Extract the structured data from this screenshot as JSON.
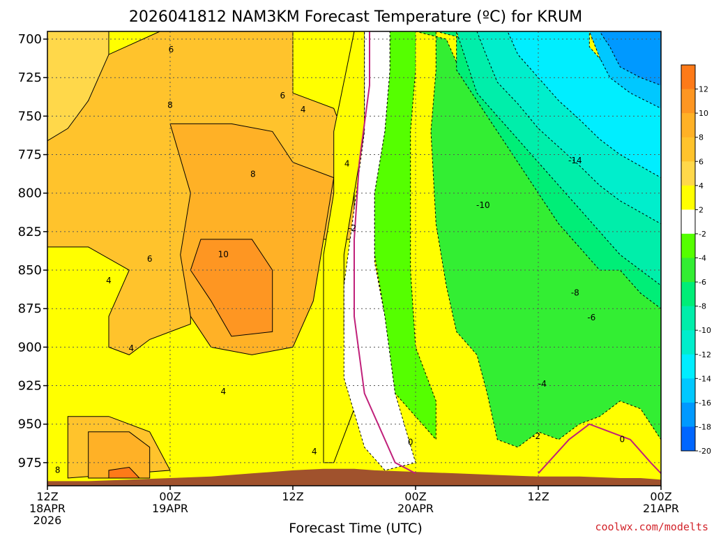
{
  "chart_data": {
    "type": "heatmap",
    "title": "2026041812 NAM3KM Forecast Temperature (ºC) for KRUM",
    "xlabel": "Forecast Time (UTC)",
    "ylabel": "",
    "credit": "coolwx.com/modelts",
    "x_hours_range": [
      0,
      60
    ],
    "y_pressure_range": [
      695,
      990
    ],
    "y_ticks": [
      700,
      725,
      750,
      775,
      800,
      825,
      850,
      875,
      900,
      925,
      950,
      975
    ],
    "y_tick_labels": [
      "700",
      "725",
      "750",
      "775",
      "800",
      "825",
      "850",
      "875",
      "900",
      "925",
      "950",
      "975"
    ],
    "x_ticks": [
      {
        "hour": 0,
        "lines": [
          "12Z",
          "18APR",
          "2026"
        ]
      },
      {
        "hour": 12,
        "lines": [
          "00Z",
          "19APR"
        ]
      },
      {
        "hour": 24,
        "lines": [
          "12Z"
        ]
      },
      {
        "hour": 36,
        "lines": [
          "00Z",
          "20APR"
        ]
      },
      {
        "hour": 48,
        "lines": [
          "12Z"
        ]
      },
      {
        "hour": 60,
        "lines": [
          "00Z",
          "21APR"
        ]
      }
    ],
    "colorbar": {
      "levels": [
        12,
        10,
        8,
        6,
        4,
        2,
        -2,
        -4,
        -6,
        -8,
        -10,
        -12,
        -14,
        -16,
        -18,
        -20
      ],
      "labels": [
        "12",
        "10",
        "8",
        "6",
        "4",
        "2",
        "-2",
        "-4",
        "-6",
        "-8",
        "-10",
        "-12",
        "-14",
        "-16",
        "-18",
        "-20"
      ],
      "colors": [
        "#fe7a18",
        "#fe9622",
        "#ffb126",
        "#ffc32c",
        "#ffd84a",
        "#ffff00",
        "#ffffff",
        "#55ff00",
        "#33ee33",
        "#00ee77",
        "#00eeaa",
        "#00eecc",
        "#00eeff",
        "#00c8ff",
        "#0099ff",
        "#0066ff"
      ],
      "above_top_color": "#fe6a10"
    },
    "terrain_color": "#a0522d",
    "zero_line_color": "#c0207a",
    "contour_labels": [
      {
        "text": "6",
        "hour": 12.1,
        "p": 707
      },
      {
        "text": "8",
        "hour": 12.0,
        "p": 743
      },
      {
        "text": "6",
        "hour": 23.0,
        "p": 737
      },
      {
        "text": "4",
        "hour": 25.0,
        "p": 746
      },
      {
        "text": "8",
        "hour": 20.1,
        "p": 788
      },
      {
        "text": "4",
        "hour": 29.3,
        "p": 781
      },
      {
        "text": "-2",
        "hour": 29.8,
        "p": 823
      },
      {
        "text": "10",
        "hour": 17.2,
        "p": 840
      },
      {
        "text": "6",
        "hour": 10.0,
        "p": 843
      },
      {
        "text": "4",
        "hour": 6.0,
        "p": 857
      },
      {
        "text": "4",
        "hour": 8.2,
        "p": 901
      },
      {
        "text": "4",
        "hour": 17.2,
        "p": 929
      },
      {
        "text": "4",
        "hour": 26.1,
        "p": 968
      },
      {
        "text": "0",
        "hour": 35.5,
        "p": 962
      },
      {
        "text": "-10",
        "hour": 42.6,
        "p": 808
      },
      {
        "text": "-14",
        "hour": 51.6,
        "p": 779
      },
      {
        "text": "-8",
        "hour": 51.6,
        "p": 865
      },
      {
        "text": "-6",
        "hour": 53.2,
        "p": 881
      },
      {
        "text": "-4",
        "hour": 48.4,
        "p": 924
      },
      {
        "text": "-2",
        "hour": 47.8,
        "p": 958
      },
      {
        "text": "0",
        "hour": 56.2,
        "p": 960
      },
      {
        "text": "8",
        "hour": 1.0,
        "p": 980
      }
    ],
    "regions": [
      {
        "level": "4",
        "path": [
          [
            0,
            695
          ],
          [
            6,
            695
          ],
          [
            6,
            715
          ],
          [
            4,
            740
          ],
          [
            2,
            760
          ],
          [
            0,
            770
          ]
        ]
      },
      {
        "level": "6",
        "path": [
          [
            0,
            766
          ],
          [
            2,
            758
          ],
          [
            4,
            740
          ],
          [
            6,
            710
          ],
          [
            11,
            695
          ],
          [
            24,
            695
          ],
          [
            24,
            735
          ],
          [
            28,
            745
          ],
          [
            30,
            780
          ],
          [
            30,
            830
          ],
          [
            24,
            830
          ],
          [
            18,
            830
          ],
          [
            14,
            860
          ],
          [
            14,
            885
          ],
          [
            10,
            895
          ],
          [
            8,
            905
          ],
          [
            6,
            900
          ],
          [
            6,
            880
          ],
          [
            8,
            850
          ],
          [
            4,
            835
          ],
          [
            0,
            835
          ]
        ]
      },
      {
        "level": "6",
        "path": [
          [
            2,
            945
          ],
          [
            6,
            945
          ],
          [
            10,
            955
          ],
          [
            12,
            980
          ],
          [
            2,
            985
          ]
        ]
      },
      {
        "level": "8",
        "path": [
          [
            12,
            755
          ],
          [
            18,
            755
          ],
          [
            22,
            760
          ],
          [
            24,
            780
          ],
          [
            28,
            790
          ],
          [
            26,
            870
          ],
          [
            24,
            900
          ],
          [
            20,
            905
          ],
          [
            16,
            900
          ],
          [
            14,
            880
          ],
          [
            13,
            840
          ],
          [
            14,
            800
          ]
        ]
      },
      {
        "level": "8",
        "path": [
          [
            4,
            955
          ],
          [
            8,
            955
          ],
          [
            10,
            965
          ],
          [
            10,
            985
          ],
          [
            4,
            985
          ]
        ]
      },
      {
        "level": "10",
        "path": [
          [
            15,
            830
          ],
          [
            20,
            830
          ],
          [
            22,
            850
          ],
          [
            22,
            890
          ],
          [
            18,
            893
          ],
          [
            16,
            870
          ],
          [
            14,
            850
          ]
        ]
      },
      {
        "level": "12",
        "path": [
          [
            6,
            980
          ],
          [
            8,
            978
          ],
          [
            9,
            985
          ],
          [
            6,
            985
          ]
        ]
      },
      {
        "level": "2",
        "path": [
          [
            30,
            695
          ],
          [
            31,
            695
          ],
          [
            31,
            760
          ],
          [
            30,
            800
          ],
          [
            29,
            840
          ],
          [
            29,
            890
          ],
          [
            30,
            940
          ],
          [
            28,
            975
          ],
          [
            27,
            975
          ],
          [
            27,
            880
          ],
          [
            27,
            840
          ],
          [
            28,
            800
          ],
          [
            28,
            760
          ]
        ]
      },
      {
        "level": "-2",
        "path": [
          [
            31,
            695
          ],
          [
            33.5,
            695
          ],
          [
            33.5,
            720
          ],
          [
            33,
            760
          ],
          [
            32,
            800
          ],
          [
            32,
            845
          ],
          [
            33,
            880
          ],
          [
            34,
            930
          ],
          [
            36,
            975
          ],
          [
            33,
            980
          ],
          [
            31,
            965
          ],
          [
            29,
            920
          ],
          [
            29,
            860
          ],
          [
            30,
            810
          ],
          [
            31,
            760
          ]
        ]
      },
      {
        "level": "-4",
        "path": [
          [
            33.5,
            695
          ],
          [
            36,
            695
          ],
          [
            36,
            720
          ],
          [
            35.5,
            760
          ],
          [
            35.5,
            800
          ],
          [
            35.5,
            850
          ],
          [
            36,
            900
          ],
          [
            38,
            935
          ],
          [
            38,
            960
          ],
          [
            34,
            930
          ],
          [
            33,
            880
          ],
          [
            32,
            840
          ],
          [
            32,
            800
          ],
          [
            33,
            760
          ],
          [
            33.5,
            720
          ]
        ]
      },
      {
        "level": "-6",
        "path": [
          [
            36,
            695
          ],
          [
            38,
            695
          ],
          [
            38,
            720
          ],
          [
            37.5,
            760
          ],
          [
            38,
            820
          ],
          [
            39,
            860
          ],
          [
            40,
            890
          ],
          [
            42,
            905
          ],
          [
            43,
            930
          ],
          [
            44,
            960
          ],
          [
            46,
            965
          ],
          [
            48,
            955
          ],
          [
            50,
            960
          ],
          [
            52,
            950
          ],
          [
            54,
            945
          ],
          [
            56,
            935
          ],
          [
            58,
            940
          ],
          [
            60,
            960
          ],
          [
            60,
            850
          ],
          [
            56,
            830
          ],
          [
            54,
            840
          ],
          [
            52,
            820
          ],
          [
            50,
            800
          ],
          [
            48,
            790
          ],
          [
            46,
            770
          ],
          [
            44,
            750
          ],
          [
            42,
            735
          ],
          [
            40,
            715
          ],
          [
            39,
            700
          ]
        ]
      },
      {
        "level": "-8",
        "path": [
          [
            38,
            695
          ],
          [
            40,
            695
          ],
          [
            40,
            720
          ],
          [
            42,
            740
          ],
          [
            44,
            760
          ],
          [
            46,
            780
          ],
          [
            48,
            800
          ],
          [
            50,
            820
          ],
          [
            52,
            835
          ],
          [
            54,
            850
          ],
          [
            56,
            850
          ],
          [
            58,
            865
          ],
          [
            60,
            875
          ],
          [
            60,
            830
          ],
          [
            56,
            810
          ],
          [
            54,
            795
          ],
          [
            52,
            780
          ],
          [
            50,
            770
          ],
          [
            48,
            755
          ],
          [
            46,
            740
          ],
          [
            44,
            725
          ],
          [
            42,
            710
          ],
          [
            41,
            700
          ]
        ]
      },
      {
        "level": "-10",
        "path": [
          [
            40,
            695
          ],
          [
            42,
            695
          ],
          [
            44,
            710
          ],
          [
            46,
            725
          ],
          [
            48,
            740
          ],
          [
            50,
            755
          ],
          [
            52,
            770
          ],
          [
            54,
            780
          ],
          [
            56,
            790
          ],
          [
            58,
            800
          ],
          [
            60,
            810
          ],
          [
            60,
            860
          ],
          [
            56,
            840
          ],
          [
            54,
            825
          ],
          [
            52,
            810
          ],
          [
            50,
            795
          ],
          [
            48,
            780
          ],
          [
            46,
            765
          ],
          [
            44,
            750
          ],
          [
            42,
            735
          ],
          [
            41,
            715
          ]
        ]
      },
      {
        "level": "-12",
        "path": [
          [
            42,
            695
          ],
          [
            45,
            695
          ],
          [
            47,
            710
          ],
          [
            49,
            720
          ],
          [
            51,
            735
          ],
          [
            53,
            745
          ],
          [
            55,
            755
          ],
          [
            57,
            765
          ],
          [
            60,
            775
          ],
          [
            60,
            820
          ],
          [
            56,
            805
          ],
          [
            54,
            795
          ],
          [
            52,
            782
          ],
          [
            50,
            770
          ],
          [
            48,
            758
          ],
          [
            46,
            742
          ],
          [
            44,
            728
          ],
          [
            43,
            712
          ]
        ]
      },
      {
        "level": "-14",
        "path": [
          [
            45,
            695
          ],
          [
            53,
            695
          ],
          [
            53,
            705
          ],
          [
            55,
            720
          ],
          [
            57,
            730
          ],
          [
            60,
            740
          ],
          [
            60,
            790
          ],
          [
            56,
            775
          ],
          [
            54,
            765
          ],
          [
            52,
            752
          ],
          [
            50,
            740
          ],
          [
            48,
            725
          ],
          [
            46,
            710
          ]
        ]
      },
      {
        "level": "-16",
        "path": [
          [
            53,
            695
          ],
          [
            60,
            695
          ],
          [
            60,
            745
          ],
          [
            57,
            735
          ],
          [
            55,
            725
          ],
          [
            54,
            712
          ]
        ]
      },
      {
        "level": "-18",
        "path": [
          [
            54,
            695
          ],
          [
            60,
            695
          ],
          [
            60,
            730
          ],
          [
            58,
            725
          ],
          [
            56,
            718
          ],
          [
            55,
            705
          ]
        ]
      }
    ],
    "terrain": [
      [
        0,
        987
      ],
      [
        4,
        987
      ],
      [
        8,
        986
      ],
      [
        12,
        985
      ],
      [
        16,
        984
      ],
      [
        20,
        982
      ],
      [
        24,
        980
      ],
      [
        27,
        979
      ],
      [
        30,
        979
      ],
      [
        32,
        980
      ],
      [
        36,
        981
      ],
      [
        40,
        982
      ],
      [
        44,
        983
      ],
      [
        48,
        984
      ],
      [
        52,
        984
      ],
      [
        56,
        985
      ],
      [
        58,
        985
      ],
      [
        60,
        986
      ]
    ]
  }
}
